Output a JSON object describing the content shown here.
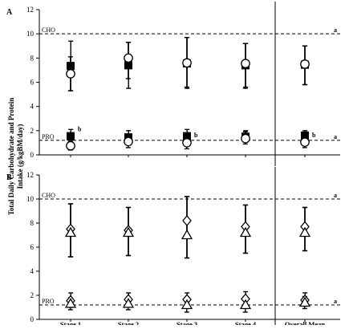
{
  "chart_data": [
    {
      "panel": "A",
      "type": "scatter",
      "xlabel": "",
      "ylabel": "Total Daily Carbohydrate and Protein Intake (g/kgBM/day)",
      "categories": [
        "Stage 1",
        "Stage 2",
        "Stage 3",
        "Stage 4",
        "Overall Mean"
      ],
      "ylim": [
        0,
        12
      ],
      "yticks": [
        0,
        2,
        4,
        6,
        8,
        10,
        12
      ],
      "reference_lines": [
        {
          "label": "CHO",
          "value": 10,
          "sig": "a"
        },
        {
          "label": "PRO",
          "value": 1.2,
          "sig": "a"
        }
      ],
      "series": [
        {
          "marker": "filled-square",
          "group": "CHO",
          "values": [
            7.35,
            7.4,
            7.55,
            7.4,
            7.45
          ],
          "err_low": [
            5.3,
            5.5,
            5.5,
            5.6,
            5.8
          ],
          "err_high": [
            9.4,
            9.3,
            9.7,
            9.2,
            9.0
          ]
        },
        {
          "marker": "open-circle",
          "group": "CHO",
          "values": [
            6.7,
            8.0,
            7.6,
            7.55,
            7.5
          ],
          "err_low": [
            5.3,
            6.3,
            5.6,
            5.5,
            5.8
          ],
          "err_high": [
            8.1,
            9.3,
            9.7,
            9.2,
            9.0
          ]
        },
        {
          "marker": "filled-square",
          "group": "PRO",
          "values": [
            1.55,
            1.45,
            1.55,
            1.5,
            1.6
          ],
          "err_low": [
            1.2,
            1.0,
            1.0,
            1.1,
            1.1
          ],
          "err_high": [
            2.1,
            2.0,
            2.1,
            2.0,
            2.0
          ]
        },
        {
          "marker": "open-circle",
          "group": "PRO",
          "values": [
            0.75,
            1.1,
            1.0,
            1.35,
            1.05
          ],
          "err_low": [
            0.4,
            0.6,
            0.5,
            0.9,
            0.6
          ],
          "err_high": [
            1.1,
            1.6,
            1.6,
            1.9,
            1.6
          ]
        }
      ],
      "annotations": [
        {
          "text": "b",
          "category": "Stage 1",
          "value": 2.1
        },
        {
          "text": "b",
          "category": "Stage 3",
          "value": 1.6
        },
        {
          "text": "b",
          "category": "Overall Mean",
          "value": 1.6
        }
      ]
    },
    {
      "panel": "B",
      "type": "scatter",
      "xlabel": "",
      "ylabel": "",
      "categories": [
        "Stage 1",
        "Stage 2",
        "Stage 3",
        "Stage 4",
        "Overall Mean"
      ],
      "ylim": [
        0,
        12
      ],
      "yticks": [
        0,
        2,
        4,
        6,
        8,
        10,
        12
      ],
      "reference_lines": [
        {
          "label": "CHO",
          "value": 10,
          "sig": "a"
        },
        {
          "label": "PRO",
          "value": 1.2,
          "sig": "a"
        }
      ],
      "series": [
        {
          "marker": "open-diamond",
          "group": "CHO",
          "values": [
            7.5,
            7.4,
            8.2,
            7.7,
            7.7
          ],
          "err_low": [
            5.2,
            5.3,
            5.1,
            5.5,
            5.7
          ],
          "err_high": [
            9.6,
            9.3,
            10.2,
            9.5,
            9.3
          ]
        },
        {
          "marker": "open-triangle",
          "group": "CHO",
          "values": [
            7.2,
            7.2,
            7.0,
            7.2,
            7.2
          ],
          "err_low": [
            5.2,
            5.3,
            5.1,
            5.5,
            5.7
          ],
          "err_high": [
            9.6,
            9.3,
            10.2,
            9.5,
            9.3
          ]
        },
        {
          "marker": "open-diamond",
          "group": "PRO",
          "values": [
            1.55,
            1.65,
            1.65,
            1.7,
            1.6
          ],
          "err_low": [
            1.0,
            1.1,
            1.0,
            1.1,
            1.1
          ],
          "err_high": [
            2.2,
            2.2,
            2.2,
            2.3,
            2.2
          ]
        },
        {
          "marker": "open-triangle",
          "group": "PRO",
          "values": [
            1.3,
            1.3,
            1.2,
            1.2,
            1.4
          ],
          "err_low": [
            0.8,
            0.8,
            0.6,
            0.6,
            0.9
          ],
          "err_high": [
            1.8,
            1.8,
            1.8,
            1.8,
            1.9
          ]
        }
      ],
      "annotations": []
    }
  ]
}
